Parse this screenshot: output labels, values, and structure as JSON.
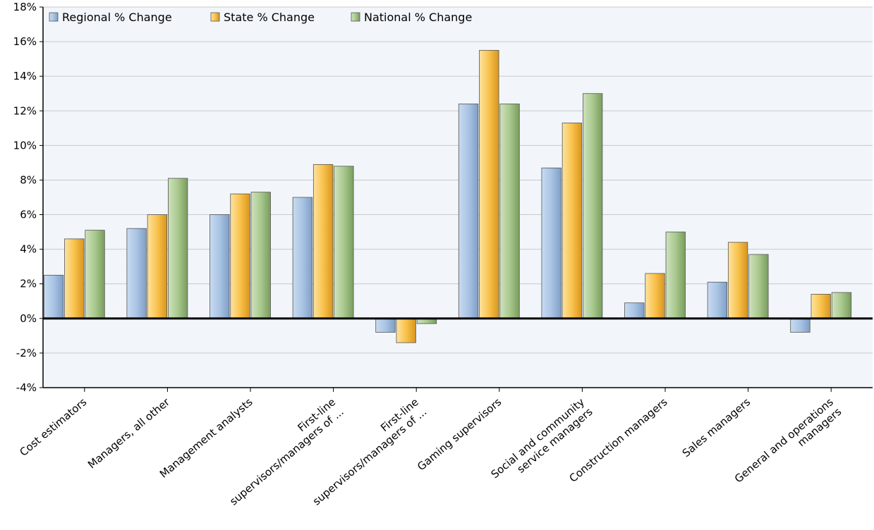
{
  "chart_data": {
    "type": "bar",
    "categories": [
      [
        "Cost estimators"
      ],
      [
        "Managers, all other"
      ],
      [
        "Management analysts"
      ],
      [
        "First-line",
        "supervisors/managers of ..."
      ],
      [
        "First-line",
        "supervisors/managers of ..."
      ],
      [
        "Gaming supervisors"
      ],
      [
        "Social and community",
        "service managers"
      ],
      [
        "Construction managers"
      ],
      [
        "Sales managers"
      ],
      [
        "General and operations",
        "managers"
      ]
    ],
    "series": [
      {
        "name": "Regional % Change",
        "color": "#a9c4e4",
        "values": [
          2.5,
          5.2,
          6.0,
          7.0,
          -0.8,
          12.4,
          8.7,
          0.9,
          2.1,
          -0.8
        ]
      },
      {
        "name": "State % Change",
        "color": "#f9c24d",
        "values": [
          4.6,
          6.0,
          7.2,
          8.9,
          -1.4,
          15.5,
          11.3,
          2.6,
          4.4,
          1.4
        ]
      },
      {
        "name": "National % Change",
        "color": "#a9c98e",
        "values": [
          5.1,
          8.1,
          7.3,
          8.8,
          -0.3,
          12.4,
          13.0,
          5.0,
          3.7,
          1.5
        ]
      }
    ],
    "ylim": [
      -4,
      18
    ],
    "yticks": [
      -4,
      -2,
      0,
      2,
      4,
      6,
      8,
      10,
      12,
      14,
      16,
      18
    ],
    "ytick_format": "%",
    "grid": true,
    "legend_position": "top-left"
  }
}
